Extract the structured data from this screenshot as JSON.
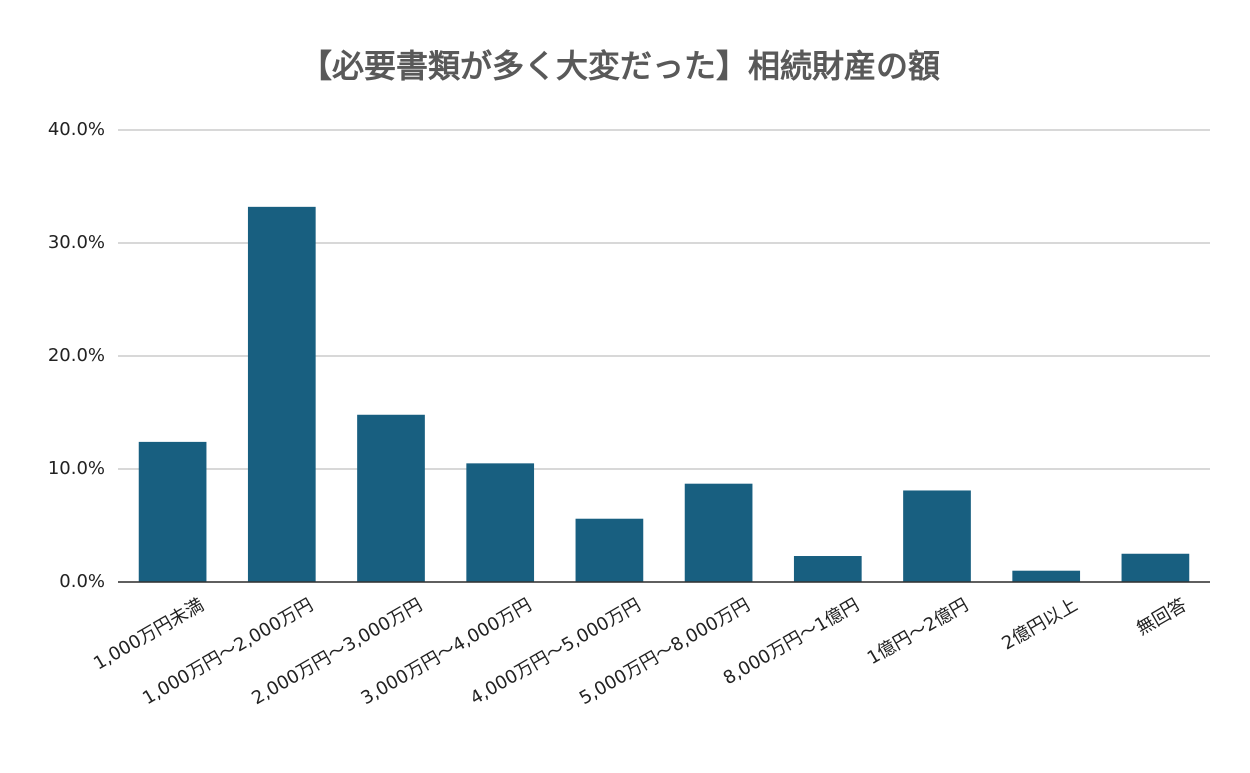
{
  "chart_data": {
    "type": "bar",
    "title": "【必要書類が多く大変だった】相続財産の額",
    "categories": [
      "1,000万円未満",
      "1,000万円～2,000万円",
      "2,000万円～3,000万円",
      "3,000万円～4,000万円",
      "4,000万円～5,000万円",
      "5,000万円～8,000万円",
      "8,000万円～1億円",
      "1億円～2億円",
      "2億円以上",
      "無回答"
    ],
    "values": [
      12.4,
      33.2,
      14.8,
      10.5,
      5.6,
      8.7,
      2.3,
      8.1,
      1.0,
      2.5
    ],
    "color": "#185f80",
    "ylim": [
      0,
      40
    ],
    "yticks": [
      {
        "value": 0,
        "label": "0.0%"
      },
      {
        "value": 10,
        "label": "10.0%"
      },
      {
        "value": 20,
        "label": "20.0%"
      },
      {
        "value": 30,
        "label": "30.0%"
      },
      {
        "value": 40,
        "label": "40.0%"
      }
    ],
    "grid": true
  }
}
